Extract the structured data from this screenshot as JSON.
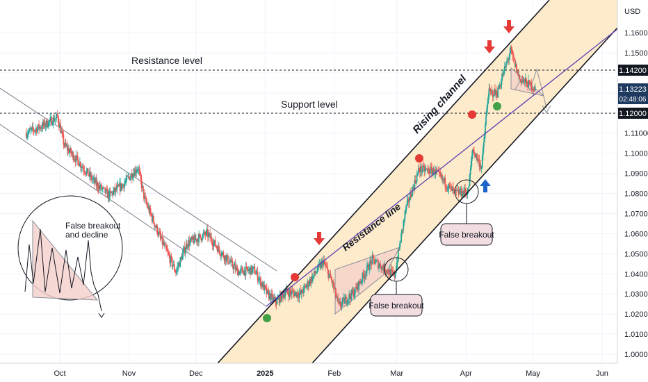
{
  "chart_data": {
    "type": "candlestick",
    "currency_label": "USD",
    "y_ticks": [
      "1.16000",
      "1.15000",
      "1.14000",
      "1.13000",
      "1.12000",
      "1.11000",
      "1.10000",
      "1.09000",
      "1.08000",
      "1.07000",
      "1.06000",
      "1.05000",
      "1.04000",
      "1.03000",
      "1.02000",
      "1.01000",
      "1.00000"
    ],
    "y_tick_values": [
      1.16,
      1.15,
      1.14,
      1.13,
      1.12,
      1.11,
      1.1,
      1.09,
      1.08,
      1.07,
      1.06,
      1.05,
      1.04,
      1.03,
      1.02,
      1.01,
      1.0
    ],
    "x_ticks": [
      "Oct",
      "Nov",
      "Dec",
      "2025",
      "Feb",
      "Mar",
      "Apr",
      "May",
      "Jun"
    ],
    "x_tick_dates": [
      "2024-10-01",
      "2024-11-01",
      "2024-12-01",
      "2025-01-01",
      "2025-02-01",
      "2025-03-01",
      "2025-04-01",
      "2025-05-01",
      "2025-06-01"
    ],
    "ylim": [
      0.995,
      1.167
    ],
    "price_labels": {
      "resistance": "1.14200",
      "current_price": "1.13223",
      "countdown": "02:48:06",
      "support": "1.12000"
    },
    "levels": {
      "resistance": 1.142,
      "support": 1.12
    },
    "colors": {
      "up": "#26a69a",
      "down": "#ef5350",
      "channel_fill": "#fde9c4",
      "red_marker": "#e53935",
      "green_marker": "#43a047",
      "blue_arrow": "#1e64c8"
    },
    "annotations": {
      "resistance_level": "Resistance level",
      "support_level": "Support level",
      "rising_channel": "Rising channel",
      "resistance_line": "Resistance line",
      "false_breakout_1": "False breakout",
      "false_breakout_2": "False breakout",
      "inset_line1": "False breakout",
      "inset_line2": "and decline"
    },
    "price_path": [
      [
        "2024-09-16",
        1.11
      ],
      [
        "2024-09-24",
        1.114
      ],
      [
        "2024-09-30",
        1.118
      ],
      [
        "2024-10-03",
        1.104
      ],
      [
        "2024-10-10",
        1.095
      ],
      [
        "2024-10-17",
        1.085
      ],
      [
        "2024-10-23",
        1.079
      ],
      [
        "2024-10-29",
        1.084
      ],
      [
        "2024-11-01",
        1.088
      ],
      [
        "2024-11-05",
        1.093
      ],
      [
        "2024-11-08",
        1.077
      ],
      [
        "2024-11-15",
        1.058
      ],
      [
        "2024-11-22",
        1.041
      ],
      [
        "2024-11-27",
        1.055
      ],
      [
        "2024-12-06",
        1.06
      ],
      [
        "2024-12-12",
        1.051
      ],
      [
        "2024-12-20",
        1.041
      ],
      [
        "2024-12-27",
        1.042
      ],
      [
        "2025-01-02",
        1.03
      ],
      [
        "2025-01-06",
        1.026
      ],
      [
        "2025-01-10",
        1.031
      ],
      [
        "2025-01-17",
        1.03
      ],
      [
        "2025-01-27",
        1.046
      ],
      [
        "2025-01-31",
        1.036
      ],
      [
        "2025-02-03",
        1.024
      ],
      [
        "2025-02-10",
        1.031
      ],
      [
        "2025-02-18",
        1.047
      ],
      [
        "2025-02-28",
        1.039
      ],
      [
        "2025-03-05",
        1.072
      ],
      [
        "2025-03-11",
        1.092
      ],
      [
        "2025-03-18",
        1.091
      ],
      [
        "2025-03-27",
        1.08
      ],
      [
        "2025-04-02",
        1.081
      ],
      [
        "2025-04-04",
        1.102
      ],
      [
        "2025-04-08",
        1.093
      ],
      [
        "2025-04-11",
        1.13
      ],
      [
        "2025-04-15",
        1.13
      ],
      [
        "2025-04-21",
        1.151
      ],
      [
        "2025-04-25",
        1.137
      ],
      [
        "2025-05-01",
        1.133
      ],
      [
        "2025-05-02",
        1.132
      ]
    ]
  }
}
